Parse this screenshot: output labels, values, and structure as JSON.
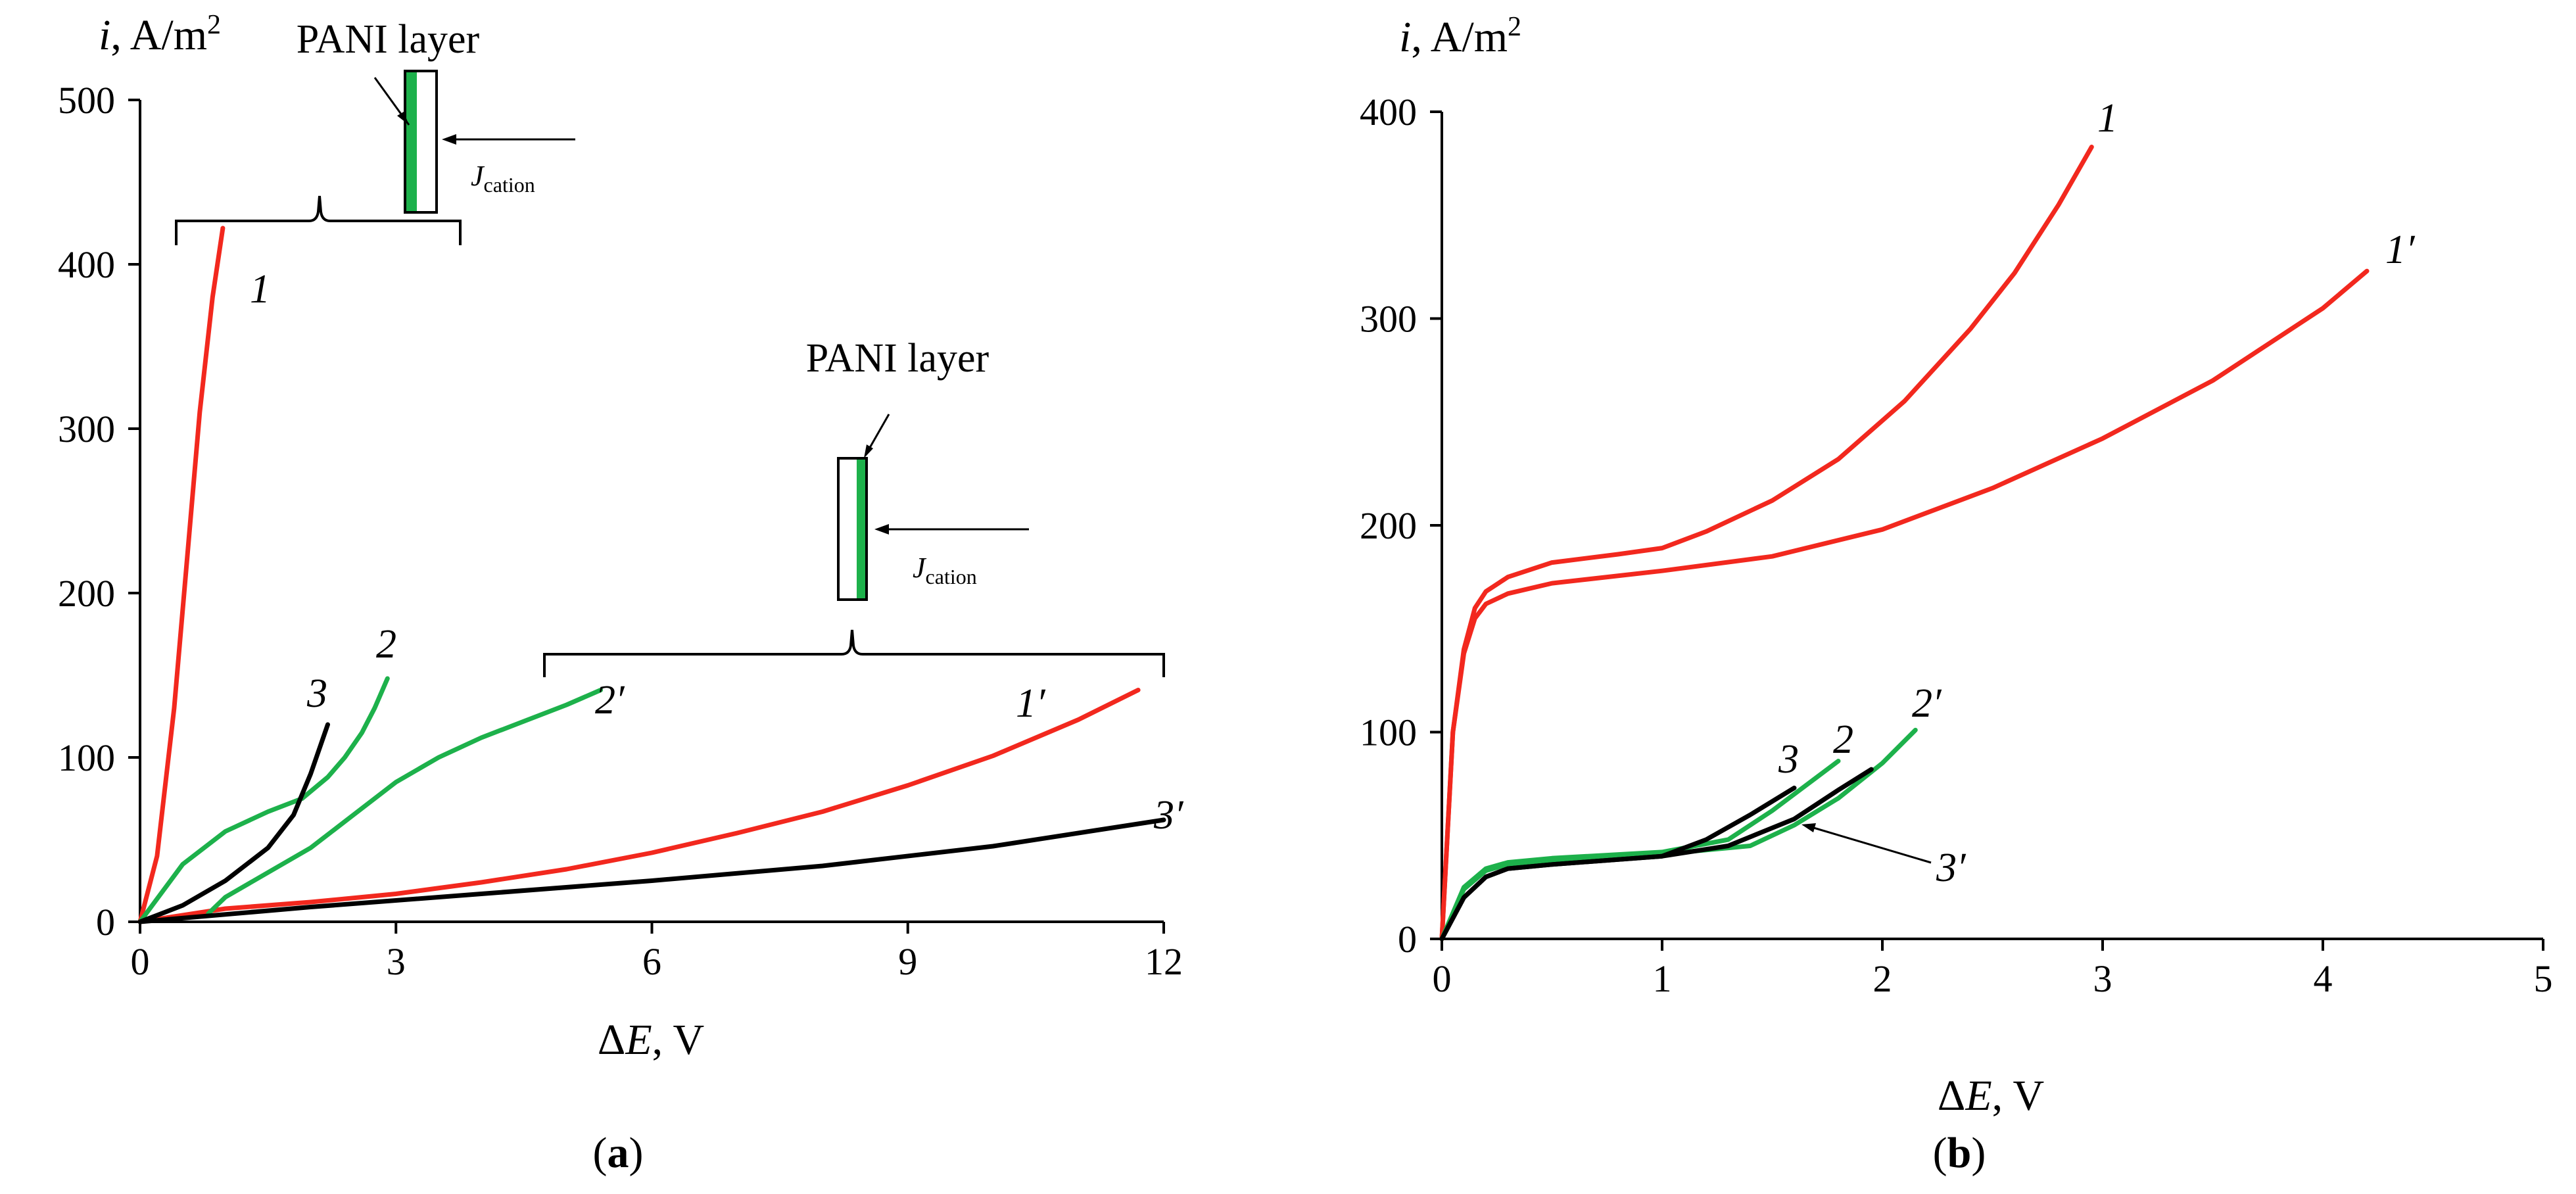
{
  "panels": [
    {
      "id": "a",
      "panel_label": {
        "open": "(",
        "letter": "a",
        "close": ")"
      },
      "ylabel": {
        "sym": "i",
        "unit": ", A/m",
        "sup": "2"
      },
      "xlabel": {
        "prefix": "Δ",
        "sym": "E",
        "unit": ", V"
      },
      "annotation_1": {
        "text": "PANI layer",
        "flux_sym": "J",
        "flux_sub": "cation"
      },
      "annotation_2": {
        "text": "PANI layer",
        "flux_sym": "J",
        "flux_sub": "cation"
      }
    },
    {
      "id": "b",
      "panel_label": {
        "open": "(",
        "letter": "b",
        "close": ")"
      },
      "ylabel": {
        "sym": "i",
        "unit": ", A/m",
        "sup": "2"
      },
      "xlabel": {
        "prefix": "Δ",
        "sym": "E",
        "unit": ", V"
      }
    }
  ],
  "colors": {
    "red": "#f2281e",
    "green": "#1db14b",
    "black": "#000000",
    "layer_green": "#1db14b"
  },
  "chart_data": [
    {
      "type": "line",
      "panel": "a",
      "xlim": [
        0,
        12
      ],
      "ylim": [
        0,
        500
      ],
      "xticks": [
        0,
        3,
        6,
        9,
        12
      ],
      "yticks": [
        0,
        100,
        200,
        300,
        400,
        500
      ],
      "xticklabels": [
        "0",
        "3",
        "6",
        "9",
        "12"
      ],
      "yticklabels": [
        "0",
        "100",
        "200",
        "300",
        "400",
        "500"
      ],
      "series": [
        {
          "name": "1",
          "label": "1",
          "color": "red",
          "x": [
            0,
            0.2,
            0.4,
            0.55,
            0.7,
            0.85,
            0.97
          ],
          "y": [
            0,
            40,
            130,
            220,
            310,
            380,
            422
          ]
        },
        {
          "name": "1'",
          "label": "1′",
          "color": "red",
          "x": [
            0,
            1,
            2,
            3,
            4,
            5,
            6,
            7,
            8,
            9,
            10,
            11,
            11.7
          ],
          "y": [
            0,
            8,
            12,
            17,
            24,
            32,
            42,
            54,
            67,
            83,
            101,
            123,
            141
          ]
        },
        {
          "name": "2",
          "label": "2",
          "color": "green",
          "x": [
            0,
            0.5,
            1.0,
            1.5,
            1.9,
            2.2,
            2.4,
            2.6,
            2.75,
            2.9
          ],
          "y": [
            0,
            35,
            55,
            67,
            75,
            88,
            100,
            115,
            130,
            148
          ]
        },
        {
          "name": "2'",
          "label": "2′",
          "color": "green",
          "x": [
            0.8,
            1.0,
            1.5,
            2.0,
            2.5,
            3.0,
            3.5,
            4.0,
            4.5,
            5.0,
            5.4
          ],
          "y": [
            5,
            15,
            30,
            45,
            65,
            85,
            100,
            112,
            122,
            132,
            141
          ]
        },
        {
          "name": "3",
          "label": "3",
          "color": "black",
          "x": [
            0,
            0.5,
            1.0,
            1.5,
            1.8,
            2.0,
            2.2
          ],
          "y": [
            0,
            10,
            25,
            45,
            65,
            90,
            120
          ]
        },
        {
          "name": "3'",
          "label": "3′",
          "color": "black",
          "x": [
            0,
            2,
            4,
            6,
            8,
            10,
            12
          ],
          "y": [
            0,
            9,
            17,
            25,
            34,
            46,
            62
          ]
        }
      ]
    },
    {
      "type": "line",
      "panel": "b",
      "xlim": [
        0,
        5
      ],
      "ylim": [
        0,
        400
      ],
      "xticks": [
        0,
        1,
        2,
        3,
        4,
        5
      ],
      "yticks": [
        0,
        100,
        200,
        300,
        400
      ],
      "xticklabels": [
        "0",
        "1",
        "2",
        "3",
        "4",
        "5"
      ],
      "yticklabels": [
        "0",
        "100",
        "200",
        "300",
        "400"
      ],
      "series": [
        {
          "name": "1",
          "label": "1",
          "color": "red",
          "x": [
            0,
            0.05,
            0.1,
            0.15,
            0.2,
            0.3,
            0.5,
            0.8,
            1.0,
            1.2,
            1.5,
            1.8,
            2.1,
            2.4,
            2.6,
            2.8,
            2.95
          ],
          "y": [
            0,
            100,
            140,
            160,
            168,
            175,
            182,
            186,
            189,
            197,
            212,
            232,
            260,
            295,
            322,
            355,
            383
          ]
        },
        {
          "name": "1'",
          "label": "1′",
          "color": "red",
          "x": [
            0,
            0.05,
            0.1,
            0.15,
            0.2,
            0.3,
            0.5,
            1.0,
            1.5,
            2.0,
            2.5,
            3.0,
            3.5,
            4.0,
            4.2
          ],
          "y": [
            0,
            100,
            138,
            155,
            162,
            167,
            172,
            178,
            185,
            198,
            218,
            242,
            270,
            305,
            323
          ]
        },
        {
          "name": "2",
          "label": "2",
          "color": "green",
          "x": [
            0,
            0.1,
            0.2,
            0.3,
            0.5,
            1.0,
            1.3,
            1.5,
            1.7,
            1.8
          ],
          "y": [
            0,
            25,
            34,
            37,
            39,
            42,
            48,
            62,
            78,
            86
          ]
        },
        {
          "name": "2'",
          "label": "2′",
          "color": "green",
          "x": [
            0,
            0.1,
            0.2,
            0.3,
            0.5,
            1.0,
            1.4,
            1.6,
            1.8,
            2.0,
            2.15
          ],
          "y": [
            0,
            24,
            33,
            36,
            38,
            41,
            45,
            55,
            68,
            85,
            101
          ]
        },
        {
          "name": "3",
          "label": "3",
          "color": "black",
          "x": [
            0,
            0.1,
            0.2,
            0.3,
            0.5,
            1.0,
            1.2,
            1.4,
            1.6
          ],
          "y": [
            0,
            20,
            30,
            34,
            36,
            40,
            48,
            60,
            73
          ]
        },
        {
          "name": "3'",
          "label": "3′",
          "color": "black",
          "x": [
            0,
            0.1,
            0.2,
            0.3,
            0.5,
            1.0,
            1.3,
            1.6,
            1.8,
            1.95
          ],
          "y": [
            0,
            20,
            30,
            34,
            36,
            40,
            45,
            58,
            72,
            82
          ]
        }
      ]
    }
  ]
}
